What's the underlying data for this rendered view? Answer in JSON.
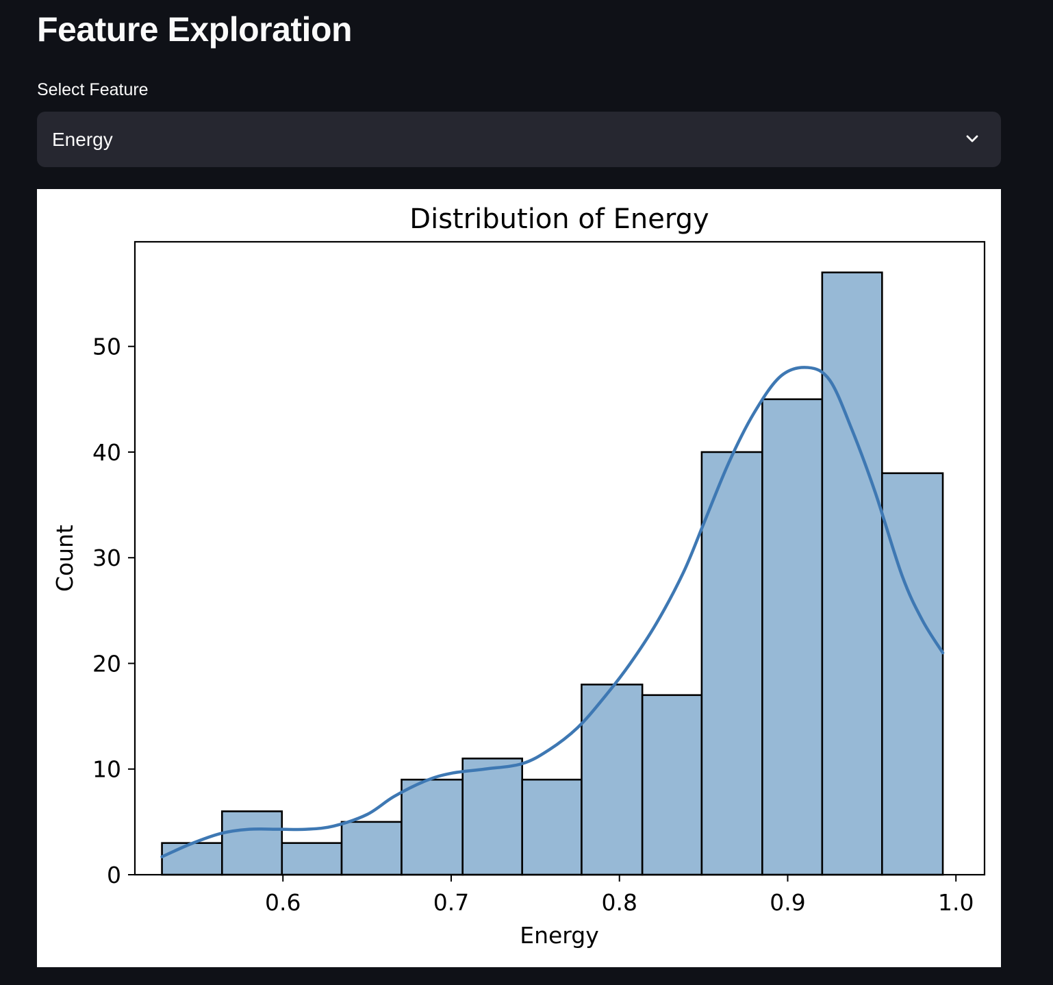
{
  "page": {
    "title": "Feature Exploration"
  },
  "select": {
    "label": "Select Feature",
    "value": "Energy",
    "icon": "chevron-down-icon"
  },
  "chart_data": {
    "type": "bar",
    "title": "Distribution of Energy",
    "xlabel": "Energy",
    "ylabel": "Count",
    "xlim": [
      0.512,
      1.017
    ],
    "ylim": [
      0,
      59.9
    ],
    "x_ticks": [
      0.6,
      0.7,
      0.8,
      0.9,
      1.0
    ],
    "x_tick_labels": [
      "0.6",
      "0.7",
      "0.8",
      "0.9",
      "1.0"
    ],
    "y_ticks": [
      0,
      10,
      20,
      30,
      40,
      50
    ],
    "y_tick_labels": [
      "0",
      "10",
      "20",
      "30",
      "40",
      "50"
    ],
    "bin_edges": [
      0.5281,
      0.5638,
      0.5994,
      0.6349,
      0.6705,
      0.7068,
      0.7422,
      0.7775,
      0.8136,
      0.8489,
      0.8849,
      0.9205,
      0.9561,
      0.9922
    ],
    "counts": [
      3,
      6,
      3,
      5,
      9,
      11,
      9,
      18,
      17,
      40,
      45,
      57,
      38
    ],
    "kde": {
      "x": [
        0.5281,
        0.545,
        0.563,
        0.58,
        0.598,
        0.614,
        0.63,
        0.65,
        0.666,
        0.685,
        0.7,
        0.72,
        0.742,
        0.758,
        0.775,
        0.79,
        0.806,
        0.822,
        0.838,
        0.85,
        0.865,
        0.88,
        0.896,
        0.912,
        0.925,
        0.938,
        0.952,
        0.968,
        0.98,
        0.9922
      ],
      "y": [
        1.7,
        2.9,
        3.9,
        4.3,
        4.3,
        4.3,
        4.6,
        5.7,
        7.4,
        8.9,
        9.6,
        10.0,
        10.5,
        11.8,
        13.9,
        16.6,
        19.9,
        23.8,
        28.6,
        33.2,
        39.0,
        43.7,
        47.2,
        48.0,
        46.8,
        42.2,
        36.2,
        28.3,
        24.1,
        21.0
      ]
    },
    "colors": {
      "bar_fill": "#97b9d6",
      "bar_edge": "#000000",
      "kde_line": "#3e78b3"
    },
    "grid": false,
    "legend": false
  }
}
